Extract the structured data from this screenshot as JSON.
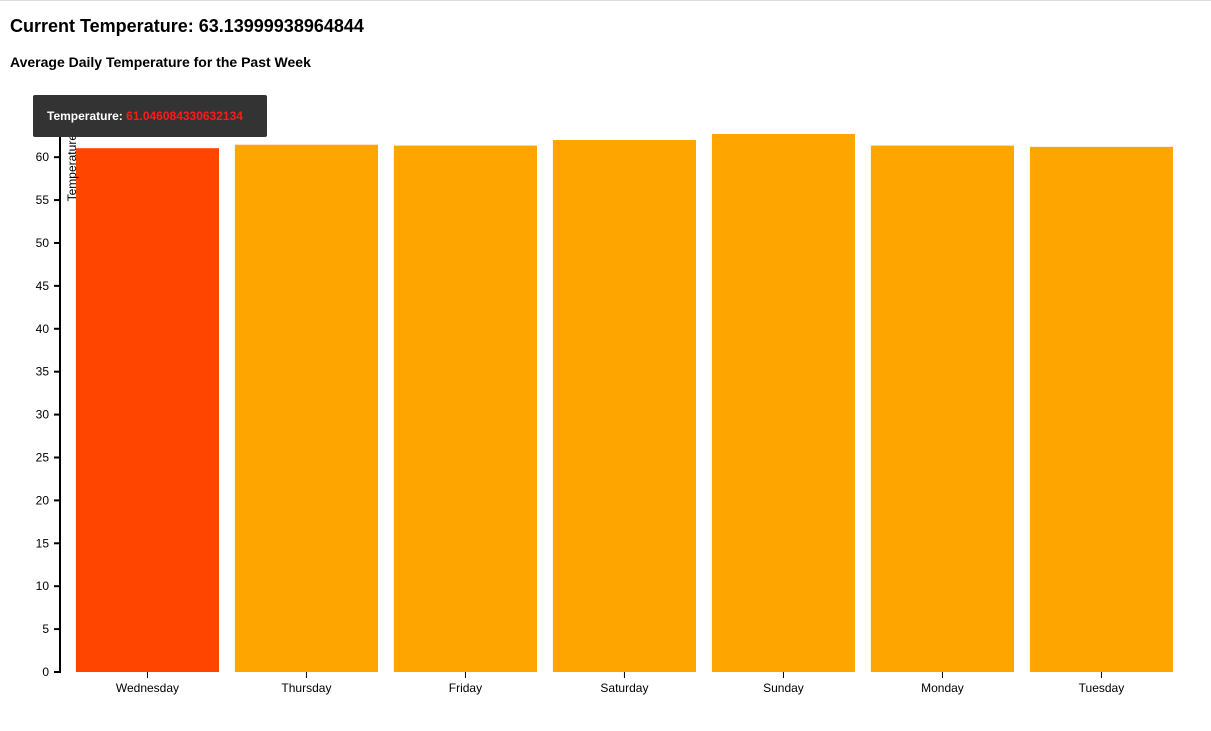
{
  "header": {
    "current_label": "Current Temperature:",
    "current_value": "63.13999938964844"
  },
  "chart_data": {
    "type": "bar",
    "title": "Average Daily Temperature for the Past Week",
    "xlabel": "",
    "ylabel": "Temperature",
    "categories": [
      "Wednesday",
      "Thursday",
      "Friday",
      "Saturday",
      "Sunday",
      "Monday",
      "Tuesday"
    ],
    "values": [
      61.046084330632134,
      61.45,
      61.35,
      62.0,
      62.7,
      61.35,
      61.2
    ],
    "ylim": [
      0,
      62.7
    ],
    "yticks": [
      0,
      5,
      10,
      15,
      20,
      25,
      30,
      35,
      40,
      45,
      50,
      55,
      60
    ],
    "highlight_index": 0,
    "colors": {
      "bar": "#ffa500",
      "highlight": "#ff4500",
      "axis": "#000000"
    }
  },
  "tooltip": {
    "label": "Temperature:",
    "value": "61.046084330632134"
  }
}
